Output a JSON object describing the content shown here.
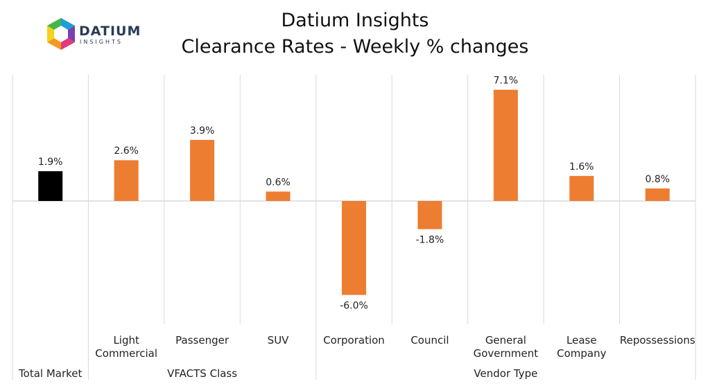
{
  "logo": {
    "name": "DATIUM",
    "sub": "INSIGHTS",
    "colors": [
      "#1aa0d8",
      "#7a3fb0",
      "#e23a7a",
      "#f39a1e",
      "#f7d21c",
      "#47b649"
    ]
  },
  "header": {
    "title_line1": "Datium Insights",
    "title_line2": "Clearance Rates - Weekly % changes"
  },
  "colors": {
    "total": "#000000",
    "segment": "#ED7D31",
    "grid": "#d9d9d9"
  },
  "chart_data": {
    "type": "bar",
    "title": "Datium Insights\nClearance Rates - Weekly % changes",
    "xlabel": "",
    "ylabel": "",
    "ylim": [
      -8,
      8
    ],
    "unit": "%",
    "categories": [
      {
        "label": [
          "Total Market"
        ],
        "group": 0,
        "value": 1.9,
        "data_label": "1.9%"
      },
      {
        "label": [
          "Light",
          "Commercial"
        ],
        "group": 1,
        "value": 2.6,
        "data_label": "2.6%"
      },
      {
        "label": [
          "Passenger"
        ],
        "group": 1,
        "value": 3.9,
        "data_label": "3.9%"
      },
      {
        "label": [
          "SUV"
        ],
        "group": 1,
        "value": 0.6,
        "data_label": "0.6%"
      },
      {
        "label": [
          "Corporation"
        ],
        "group": 2,
        "value": -6.0,
        "data_label": "-6.0%"
      },
      {
        "label": [
          "Council"
        ],
        "group": 2,
        "value": -1.8,
        "data_label": "-1.8%"
      },
      {
        "label": [
          "General",
          "Government"
        ],
        "group": 2,
        "value": 7.1,
        "data_label": "7.1%"
      },
      {
        "label": [
          "Lease",
          "Company"
        ],
        "group": 2,
        "value": 1.6,
        "data_label": "1.6%"
      },
      {
        "label": [
          "Repossessions"
        ],
        "group": 2,
        "value": 0.8,
        "data_label": "0.8%"
      }
    ],
    "groups": [
      {
        "label": ""
      },
      {
        "label": "VFACTS Class"
      },
      {
        "label": "Vendor Type"
      }
    ],
    "total_label": "Total Market",
    "grid": false,
    "legend": "none"
  }
}
